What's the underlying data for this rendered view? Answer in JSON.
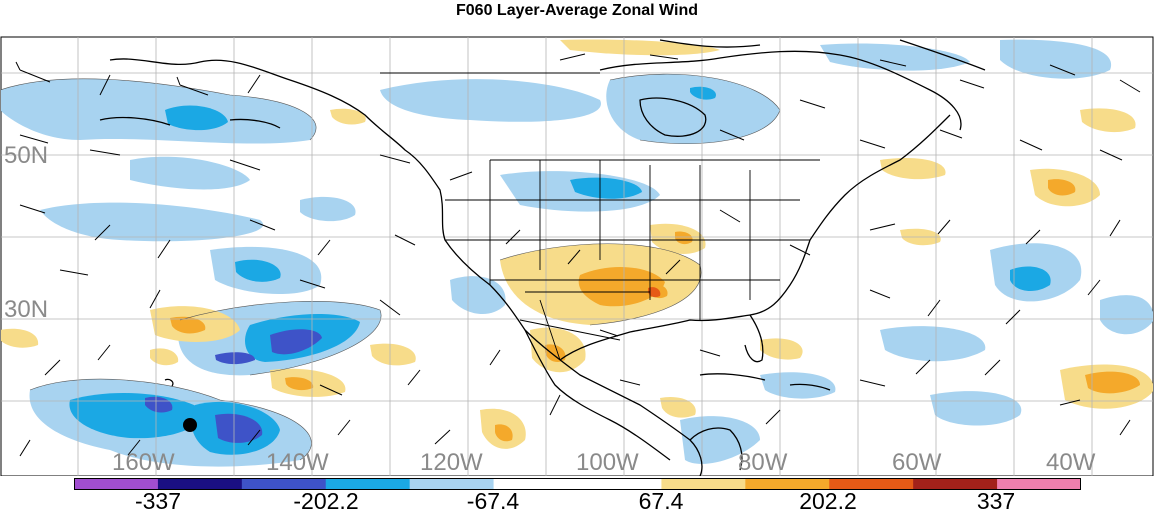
{
  "title": "F060 Layer-Average Zonal Wind",
  "lat_labels": [
    "50N",
    "30N"
  ],
  "lon_labels": [
    "160W",
    "140W",
    "120W",
    "100W",
    "80W",
    "60W",
    "40W"
  ],
  "colorbar": {
    "colors": [
      "#a14ed0",
      "#1a0f82",
      "#3e53c8",
      "#1ba8e4",
      "#a8d3f0",
      "#ffffff",
      "#ffffff",
      "#f7dc8a",
      "#f4a92b",
      "#e65a16",
      "#a3211a",
      "#ef7fae"
    ],
    "labels": [
      "-337",
      "-202.2",
      "-67.4",
      "67.4",
      "202.2",
      "337"
    ]
  },
  "colors": {
    "land_outline": "#000000",
    "grid": "#b4b4b4",
    "neg_light": "#a8d3f0",
    "neg_mid": "#1ba8e4",
    "neg_dark": "#3e53c8",
    "pos_light": "#f7dc8a",
    "pos_mid": "#f4a92b"
  }
}
